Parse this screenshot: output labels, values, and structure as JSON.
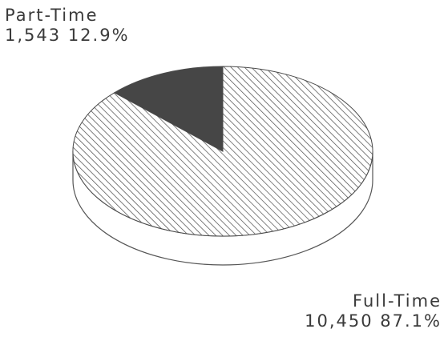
{
  "chart_data": {
    "type": "pie",
    "title": "",
    "slices": [
      {
        "name": "Part-Time",
        "value": 1543,
        "value_label": "1,543",
        "percent": 12.9,
        "percent_label": "12.9%",
        "color": "#464646",
        "fill": "solid"
      },
      {
        "name": "Full-Time",
        "value": 10450,
        "value_label": "10,450",
        "percent": 87.1,
        "percent_label": "87.1%",
        "color": "#4a4a4a",
        "fill": "diagonal-hatch"
      }
    ],
    "start_angle": "12 o'clock",
    "direction": "counterclockwise",
    "style": "3d-disc"
  }
}
